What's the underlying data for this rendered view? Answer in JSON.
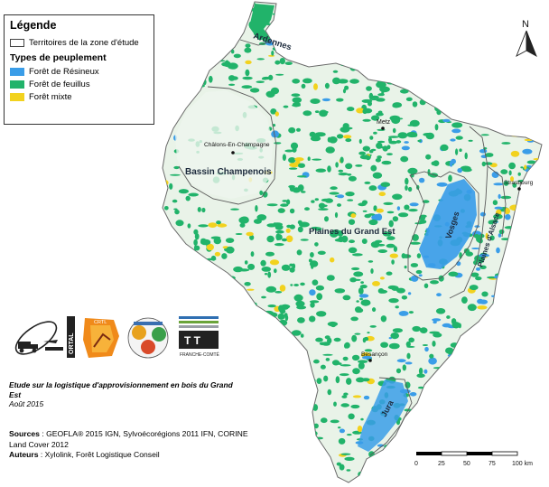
{
  "legend": {
    "title": "Légende",
    "territory_label": "Territoires de la zone d'étude",
    "types_title": "Types de peuplement",
    "items": [
      {
        "label": "Forêt de Résineux",
        "color": "#3a9de8"
      },
      {
        "label": "Forêt de feuillus",
        "color": "#21b36a"
      },
      {
        "label": "Forêt mixte",
        "color": "#f2d21e"
      }
    ]
  },
  "north_label": "N",
  "regions": {
    "ardennes": "Ardennes",
    "bassin": "Bassin Champenois",
    "plaines_ge": "Plaines du Grand Est",
    "vosges": "Vosges",
    "plaines_alsace": "Plaines d'Alsace",
    "jura": "Jura"
  },
  "cities": {
    "metz": "Metz",
    "chalons": "Châlons-En-Champagne",
    "strasbourg": "Strasbourg",
    "besancon": "Besançon"
  },
  "logos": {
    "ortal": "ORTAL",
    "crti": "CRTL",
    "fct": "FRANCHE-COMTÉ",
    "fct_short": "T T"
  },
  "study": {
    "title": "Etude sur la logistique d'approvisionnement en bois du Grand Est",
    "date": "Août 2015"
  },
  "sources": {
    "label": "Sources",
    "text": " : GEOFLA® 2015 IGN, Sylvoécorégions 2011 IFN, CORINE Land Cover 2012",
    "authors_label": "Auteurs",
    "authors_text": " : Xylolink, Forêt Logistique Conseil"
  },
  "scale": {
    "ticks": [
      "0",
      "25",
      "50",
      "75",
      "100 km"
    ]
  }
}
